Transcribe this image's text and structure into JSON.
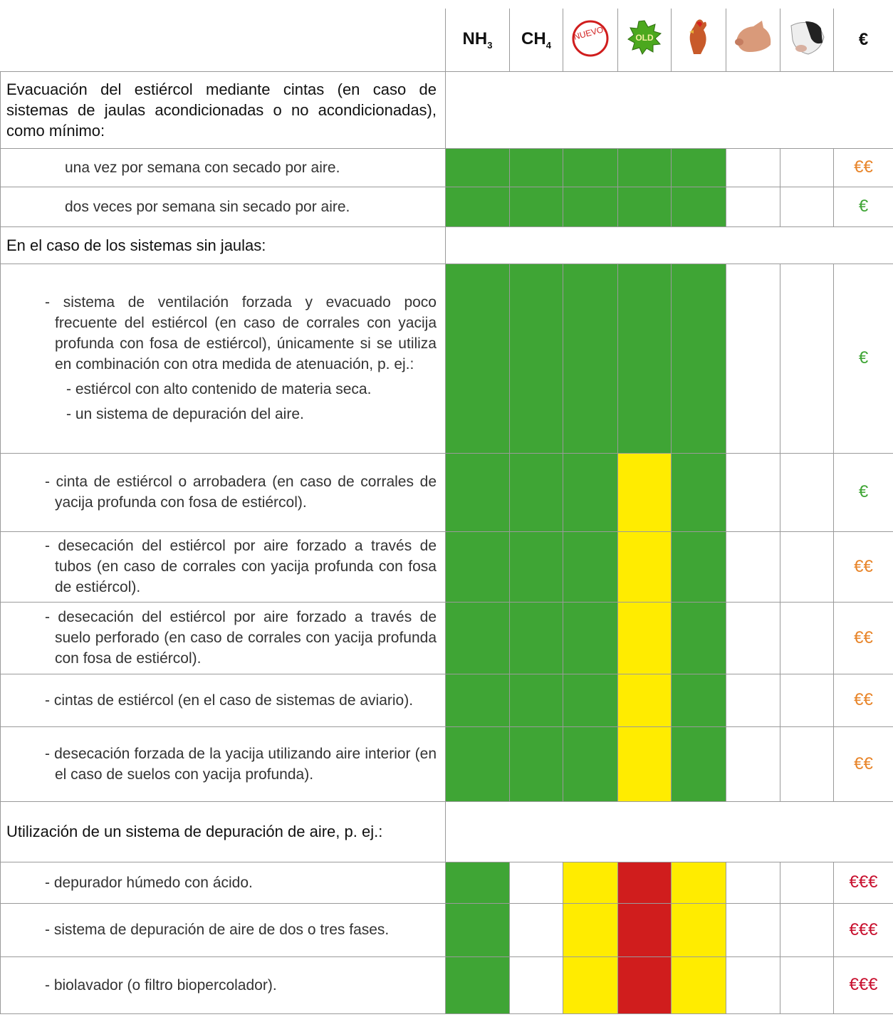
{
  "header": {
    "nh3": "NH",
    "nh3_sub": "3",
    "ch4": "CH",
    "ch4_sub": "4",
    "new_badge": "NUEVO!",
    "old_badge": "OLD",
    "cost": "€"
  },
  "rows": [
    {
      "kind": "section",
      "text": "Evacuación del estiércol mediante cintas (en caso de sistemas de jaulas acondicionadas o no acondicionadas), como mínimo:"
    },
    {
      "kind": "item",
      "text": "una vez por semana con secado por aire.",
      "cells": [
        "#3fa535",
        "#3fa535",
        "#3fa535",
        "#3fa535",
        "#3fa535",
        "#ffffff",
        "#ffffff"
      ],
      "cost": "€€",
      "cost_color": "#e8852a"
    },
    {
      "kind": "item",
      "text": "dos veces por semana sin secado por aire.",
      "cells": [
        "#3fa535",
        "#3fa535",
        "#3fa535",
        "#3fa535",
        "#3fa535",
        "#ffffff",
        "#ffffff"
      ],
      "cost": "€",
      "cost_color": "#3fa535"
    },
    {
      "kind": "section",
      "text": "En el caso de los sistemas sin jaulas:"
    },
    {
      "kind": "item",
      "text": "- sistema de ventilación forzada y evacuado poco frecuente del estiércol (en caso de corrales con yacija profunda con fosa de estiércol), únicamente si se utiliza en combinación con otra medida de atenuación, p. ej.:",
      "subitems": [
        "- estiércol con alto contenido de materia seca.",
        "- un sistema de depuración del aire."
      ],
      "cells": [
        "#3fa535",
        "#3fa535",
        "#3fa535",
        "#3fa535",
        "#3fa535",
        "#ffffff",
        "#ffffff"
      ],
      "cost": "€",
      "cost_color": "#3fa535"
    },
    {
      "kind": "item",
      "text": "- cinta de estiércol o arrobadera (en caso de corrales de yacija profunda con fosa de estiércol).",
      "cells": [
        "#3fa535",
        "#3fa535",
        "#3fa535",
        "#ffec00",
        "#3fa535",
        "#ffffff",
        "#ffffff"
      ],
      "cost": "€",
      "cost_color": "#3fa535"
    },
    {
      "kind": "item",
      "text": "- desecación del estiércol por aire forzado a través de tubos (en caso de corrales con yacija profunda con fosa de estiércol).",
      "cells": [
        "#3fa535",
        "#3fa535",
        "#3fa535",
        "#ffec00",
        "#3fa535",
        "#ffffff",
        "#ffffff"
      ],
      "cost": "€€",
      "cost_color": "#e8852a"
    },
    {
      "kind": "item",
      "text": "- desecación del estiércol por aire forzado a través de suelo perforado (en caso de corrales con yacija profunda con fosa de estiércol).",
      "cells": [
        "#3fa535",
        "#3fa535",
        "#3fa535",
        "#ffec00",
        "#3fa535",
        "#ffffff",
        "#ffffff"
      ],
      "cost": "€€",
      "cost_color": "#e8852a"
    },
    {
      "kind": "item",
      "text": "- cintas de estiércol (en el caso de sistemas de aviario).",
      "cells": [
        "#3fa535",
        "#3fa535",
        "#3fa535",
        "#ffec00",
        "#3fa535",
        "#ffffff",
        "#ffffff"
      ],
      "cost": "€€",
      "cost_color": "#e8852a"
    },
    {
      "kind": "item",
      "text": "- desecación forzada de la yacija utilizando aire interior (en el caso de suelos con yacija profunda).",
      "cells": [
        "#3fa535",
        "#3fa535",
        "#3fa535",
        "#ffec00",
        "#3fa535",
        "#ffffff",
        "#ffffff"
      ],
      "cost": "€€",
      "cost_color": "#e8852a"
    },
    {
      "kind": "section",
      "text": "Utilización de un sistema de depuración de aire, p. ej.:"
    },
    {
      "kind": "item",
      "text": "- depurador húmedo con ácido.",
      "cells": [
        "#3fa535",
        "#ffffff",
        "#ffec00",
        "#d01d1d",
        "#ffec00",
        "#ffffff",
        "#ffffff"
      ],
      "cost": "€€€",
      "cost_color": "#c8102e"
    },
    {
      "kind": "item",
      "text": "- sistema de depuración de aire de dos o tres fases.",
      "cells": [
        "#3fa535",
        "#ffffff",
        "#ffec00",
        "#d01d1d",
        "#ffec00",
        "#ffffff",
        "#ffffff"
      ],
      "cost": "€€€",
      "cost_color": "#c8102e"
    },
    {
      "kind": "item",
      "text": "- biolavador (o filtro biopercolador).",
      "cells": [
        "#3fa535",
        "#ffffff",
        "#ffec00",
        "#d01d1d",
        "#ffec00",
        "#ffffff",
        "#ffffff"
      ],
      "cost": "€€€",
      "cost_color": "#c8102e"
    }
  ]
}
